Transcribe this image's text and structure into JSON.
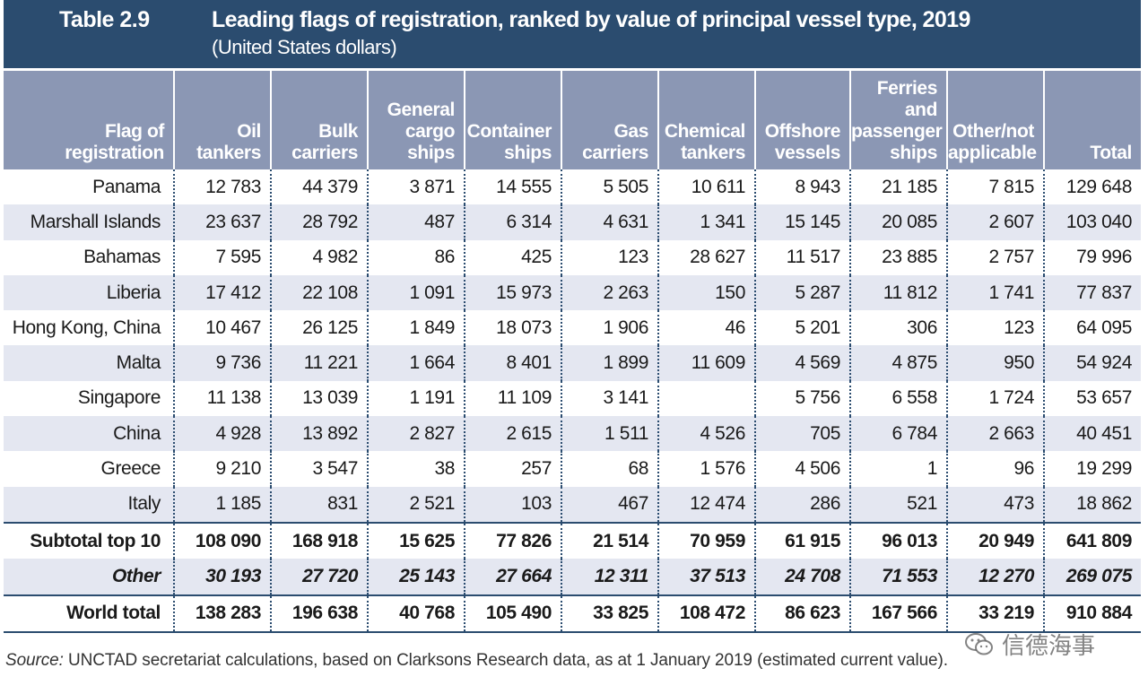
{
  "header": {
    "table_number": "Table 2.9",
    "title": "Leading flags of registration, ranked by value of principal vessel type, 2019",
    "subtitle": "(United States dollars)"
  },
  "columns": [
    "Flag of registration",
    "Oil tankers",
    "Bulk carriers",
    "General cargo ships",
    "Container ships",
    "Gas carriers",
    "Chemical tankers",
    "Offshore vessels",
    "Ferries and passenger ships",
    "Other/not applicable",
    "Total"
  ],
  "rows": [
    [
      "Panama",
      "12 783",
      "44 379",
      "3 871",
      "14 555",
      "5 505",
      "10 611",
      "8 943",
      "21 185",
      "7 815",
      "129 648"
    ],
    [
      "Marshall Islands",
      "23 637",
      "28 792",
      "487",
      "6 314",
      "4 631",
      "1 341",
      "15 145",
      "20 085",
      "2 607",
      "103 040"
    ],
    [
      "Bahamas",
      "7 595",
      "4 982",
      "86",
      "425",
      "123",
      "28 627",
      "11 517",
      "23 885",
      "2 757",
      "79 996"
    ],
    [
      "Liberia",
      "17 412",
      "22 108",
      "1 091",
      "15 973",
      "2 263",
      "150",
      "5 287",
      "11 812",
      "1 741",
      "77 837"
    ],
    [
      "Hong Kong, China",
      "10 467",
      "26 125",
      "1 849",
      "18 073",
      "1 906",
      "46",
      "5 201",
      "306",
      "123",
      "64 095"
    ],
    [
      "Malta",
      "9 736",
      "11 221",
      "1 664",
      "8 401",
      "1 899",
      "11 609",
      "4 569",
      "4 875",
      "950",
      "54 924"
    ],
    [
      "Singapore",
      "11 138",
      "13 039",
      "1 191",
      "11 109",
      "3 141",
      "",
      "5 756",
      "6 558",
      "1 724",
      "53 657"
    ],
    [
      "China",
      "4 928",
      "13 892",
      "2 827",
      "2 615",
      "1 511",
      "4 526",
      "705",
      "6 784",
      "2 663",
      "40 451"
    ],
    [
      "Greece",
      "9 210",
      "3 547",
      "38",
      "257",
      "68",
      "1 576",
      "4 506",
      "1",
      "96",
      "19 299"
    ],
    [
      "Italy",
      "1 185",
      "831",
      "2 521",
      "103",
      "467",
      "12 474",
      "286",
      "521",
      "473",
      "18 862"
    ]
  ],
  "subtotal": [
    "Subtotal top 10",
    "108 090",
    "168 918",
    "15 625",
    "77 826",
    "21 514",
    "70 959",
    "61 915",
    "96 013",
    "20 949",
    "641 809"
  ],
  "other": [
    "Other",
    "30 193",
    "27 720",
    "25 143",
    "27 664",
    "12 311",
    "37 513",
    "24 708",
    "71 553",
    "12 270",
    "269 075"
  ],
  "world_total": [
    "World total",
    "138 283",
    "196 638",
    "40 768",
    "105 490",
    "33 825",
    "108 472",
    "86 623",
    "167 566",
    "33 219",
    "910 884"
  ],
  "footer": {
    "source_label": "Source:",
    "source_text": " UNCTAD secretariat calculations, based on Clarksons Research data, as at 1 January 2019 (estimated current value)."
  },
  "watermark": {
    "text": "信德海事",
    "icon": "wechat-icon"
  },
  "colors": {
    "title_bar": "#2b4c6f",
    "header_bg": "#8b97b4",
    "alt_row": "#e4e7f1"
  }
}
